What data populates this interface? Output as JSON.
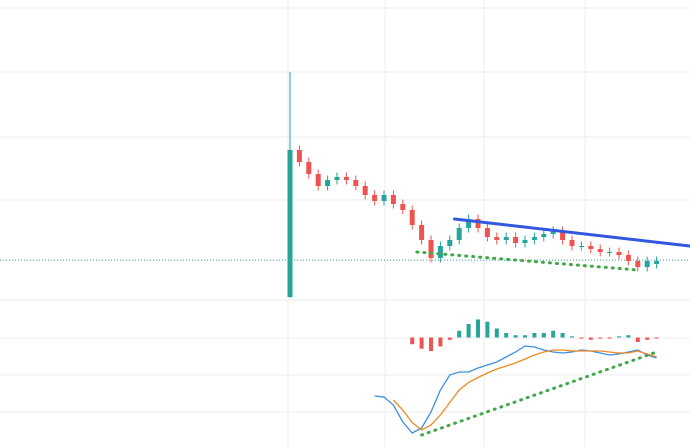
{
  "chart_data": [
    {
      "type": "candlestick",
      "ylim": [
        0,
        100
      ],
      "up_color": "#26a69a",
      "down_color": "#ef5350",
      "open": [
        1,
        50,
        46,
        42,
        38,
        40,
        41,
        40,
        38,
        35,
        33,
        35,
        32,
        30,
        25,
        20,
        14,
        18,
        20,
        24,
        27,
        24,
        21,
        20,
        21,
        19,
        20,
        21,
        22,
        23,
        20,
        18,
        18,
        17,
        16,
        16,
        15,
        13,
        11,
        12
      ],
      "high": [
        76,
        51.5,
        47.5,
        43.5,
        41.5,
        42.5,
        42.5,
        41.5,
        39.5,
        36.5,
        36.5,
        36.5,
        33.5,
        31.5,
        26.5,
        21.5,
        19.5,
        21.5,
        25.5,
        28.5,
        28.5,
        25.5,
        22.5,
        22.5,
        22.5,
        21.5,
        22.5,
        23.5,
        24.5,
        24.5,
        21.5,
        19.5,
        19.5,
        18.5,
        17.5,
        17.5,
        16.5,
        14.5,
        14.5,
        14.5
      ],
      "low": [
        0.7,
        44.5,
        40.5,
        36.5,
        36.5,
        38.5,
        38.5,
        36.5,
        33.5,
        31.5,
        31.5,
        30.5,
        28.5,
        23.5,
        18.5,
        12.5,
        12.5,
        16.5,
        18.5,
        22.5,
        22.5,
        19.5,
        18.5,
        18.5,
        17.5,
        17.5,
        18.5,
        19.5,
        20.5,
        18.5,
        16.5,
        16.5,
        15.5,
        14.5,
        14.5,
        13.5,
        11.5,
        9.5,
        9.5,
        10.5
      ],
      "close": [
        50,
        46,
        42,
        38,
        40,
        41,
        40,
        38,
        35,
        33,
        35,
        32,
        30,
        25,
        20,
        14,
        18,
        20,
        24,
        27,
        24,
        21,
        20,
        21,
        19,
        20,
        21,
        22,
        23,
        20,
        18,
        18,
        17,
        16,
        16,
        15,
        13,
        11,
        13,
        13
      ],
      "price_line": {
        "value": 13.3,
        "color": "#26a69a"
      },
      "trendlines": [
        {
          "x": [
            17.5,
            42.5
          ],
          "y": [
            27,
            18
          ],
          "color": "#3358e0",
          "style": "solid"
        },
        {
          "x": [
            13.5,
            37
          ],
          "y": [
            16,
            10
          ],
          "color": "#3fa84a",
          "style": "dotted"
        }
      ]
    },
    {
      "type": "bar",
      "ylim": [
        -10,
        10
      ],
      "pos_color": "#26a69a",
      "neg_color": "#ef5350",
      "values": [
        null,
        null,
        null,
        null,
        null,
        null,
        null,
        null,
        null,
        null,
        null,
        null,
        null,
        -3,
        -5,
        -6,
        -4,
        -1,
        3,
        6,
        8,
        7,
        4,
        2,
        1,
        1,
        2,
        2,
        3,
        2,
        0.5,
        -0.5,
        -1,
        -0.5,
        -0.5,
        0.5,
        1,
        -2,
        -1,
        -0.5
      ]
    },
    {
      "type": "line",
      "ylim": [
        -10,
        10
      ],
      "series": [
        {
          "color": "#3d8fe0",
          "values": [
            null,
            null,
            null,
            null,
            null,
            null,
            null,
            null,
            null,
            -1.2,
            -1.4,
            -3,
            -6.4,
            -8.6,
            -7.6,
            -4.4,
            0,
            3,
            3.6,
            3.6,
            4.4,
            5,
            5.6,
            6.6,
            7.6,
            8.8,
            8.6,
            8,
            7.6,
            7.4,
            7.6,
            8,
            7.8,
            7.4,
            7,
            7.2,
            7.6,
            8,
            7,
            6.4
          ]
        },
        {
          "color": "#f08a24",
          "values": [
            null,
            null,
            null,
            null,
            null,
            null,
            null,
            null,
            null,
            null,
            null,
            -2,
            -4,
            -6.5,
            -8,
            -7,
            -5,
            -2.5,
            0,
            1.5,
            2.5,
            3.4,
            4.2,
            4.8,
            5.4,
            6.2,
            7,
            7.6,
            8,
            8,
            7.8,
            7.8,
            7.8,
            7.8,
            7.6,
            7.4,
            7.4,
            7.8,
            7.2,
            6.6
          ]
        }
      ],
      "trendlines": [
        {
          "x": [
            14,
            39
          ],
          "y": [
            -9,
            7.6
          ],
          "color": "#3fa84a",
          "style": "dotted"
        }
      ]
    }
  ]
}
